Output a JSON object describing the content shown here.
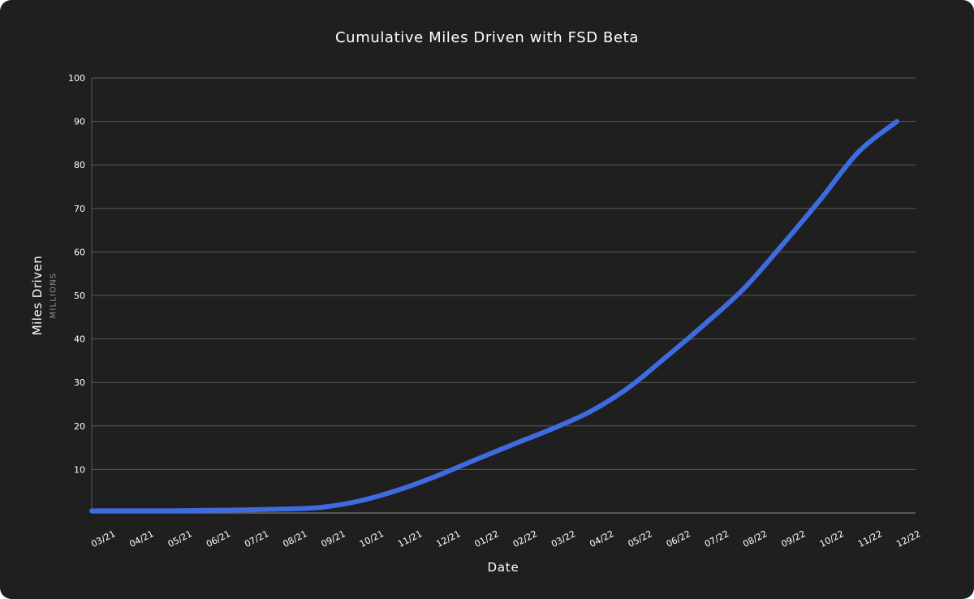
{
  "chart_data": {
    "type": "line",
    "title": "Cumulative Miles Driven with FSD Beta",
    "xlabel": "Date",
    "ylabel": "Miles Driven",
    "ylabel_unit": "MILLIONS",
    "ylim": [
      0,
      100
    ],
    "yticks": [
      10,
      20,
      30,
      40,
      50,
      60,
      70,
      80,
      90,
      100
    ],
    "grid": true,
    "line_color": "#3f6be0",
    "x": [
      "03/21",
      "04/21",
      "05/21",
      "06/21",
      "07/21",
      "08/21",
      "09/21",
      "10/21",
      "11/21",
      "12/21",
      "01/22",
      "02/22",
      "03/22",
      "04/22",
      "05/22",
      "06/22",
      "07/22",
      "08/22",
      "09/22",
      "10/22",
      "11/22",
      "12/22"
    ],
    "series": [
      {
        "values": [
          0.5,
          0.5,
          0.5,
          0.6,
          0.7,
          0.9,
          1.3,
          2.8,
          5.3,
          8.5,
          12.2,
          15.8,
          19.3,
          23.3,
          28.8,
          36.0,
          43.5,
          51.5,
          61.5,
          72.0,
          83.0,
          90.0
        ]
      }
    ]
  }
}
